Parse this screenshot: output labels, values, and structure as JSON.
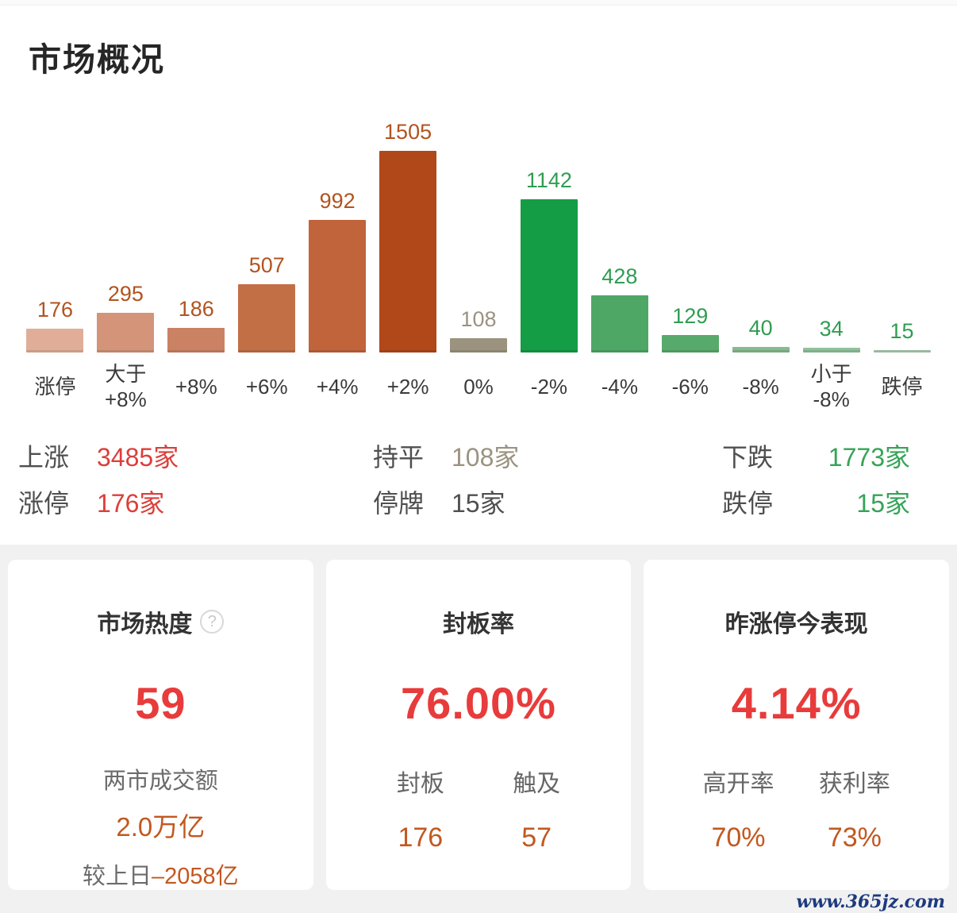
{
  "page": {
    "title": "市场概况",
    "watermark": "www.365jz.com",
    "watermark_color": "#1c3a7e",
    "section_bg": "#f1f1f1",
    "accent_red": "#e83b3b",
    "accent_orange": "#c2581f"
  },
  "chart_data": {
    "type": "bar",
    "title": "市场概况",
    "categories": [
      "涨停",
      "大于\n+8%",
      "+8%",
      "+6%",
      "+4%",
      "+2%",
      "0%",
      "-2%",
      "-4%",
      "-6%",
      "-8%",
      "小于\n-8%",
      "跌停"
    ],
    "values": [
      176,
      295,
      186,
      507,
      992,
      1505,
      108,
      1142,
      428,
      129,
      40,
      34,
      15
    ],
    "bar_colors": [
      "#e0ae98",
      "#d3947a",
      "#cb8163",
      "#c26f45",
      "#c1633b",
      "#b0481a",
      "#9b937d",
      "#149d44",
      "#4fa766",
      "#58aa6c",
      "#85bb8f",
      "#90c29b",
      "#accfb2"
    ],
    "value_label_colors": [
      "#b2531f",
      "#b2531f",
      "#b2531f",
      "#b2531f",
      "#b2531f",
      "#b2531f",
      "#9b9380",
      "#2f9d52",
      "#2f9d52",
      "#2f9d52",
      "#2f9d52",
      "#2f9d52",
      "#2f9d52"
    ],
    "xlabel": "",
    "ylabel": "",
    "ylim": [
      0,
      1505
    ],
    "grid": false,
    "legend": false
  },
  "summary": {
    "groups": [
      {
        "rows": [
          {
            "label": "上涨",
            "value": "3485家",
            "value_color": "#dd3e3a"
          },
          {
            "label": "涨停",
            "value": "176家",
            "value_color": "#dd3e3a"
          }
        ]
      },
      {
        "rows": [
          {
            "label": "持平",
            "value": "108家",
            "value_color": "#9b9380"
          },
          {
            "label": "停牌",
            "value": "15家",
            "value_color": "#4f4f4f"
          }
        ]
      },
      {
        "rows": [
          {
            "label": "下跌",
            "value": "1773家",
            "value_color": "#35a457"
          },
          {
            "label": "跌停",
            "value": "15家",
            "value_color": "#35a457"
          }
        ]
      }
    ]
  },
  "cards": [
    {
      "title": "市场热度",
      "help_icon_glyph": "?",
      "big_value": "59",
      "big_value_color": "#e83b3b",
      "subtitle": "两市成交额",
      "amount": "2.0万亿",
      "amount_color": "#c2581f",
      "footnote_label": "较上日",
      "footnote_value": "–2058亿",
      "footnote_value_color": "#c2581f"
    },
    {
      "title": "封板率",
      "big_value": "76.00%",
      "big_value_color": "#e83b3b",
      "value_color": "#c2581f",
      "stats": [
        {
          "label": "封板",
          "value": "176"
        },
        {
          "label": "触及",
          "value": "57"
        }
      ]
    },
    {
      "title": "昨涨停今表现",
      "big_value": "4.14%",
      "big_value_color": "#e83b3b",
      "value_color": "#c2581f",
      "stats": [
        {
          "label": "高开率",
          "value": "70%"
        },
        {
          "label": "获利率",
          "value": "73%"
        }
      ]
    }
  ]
}
